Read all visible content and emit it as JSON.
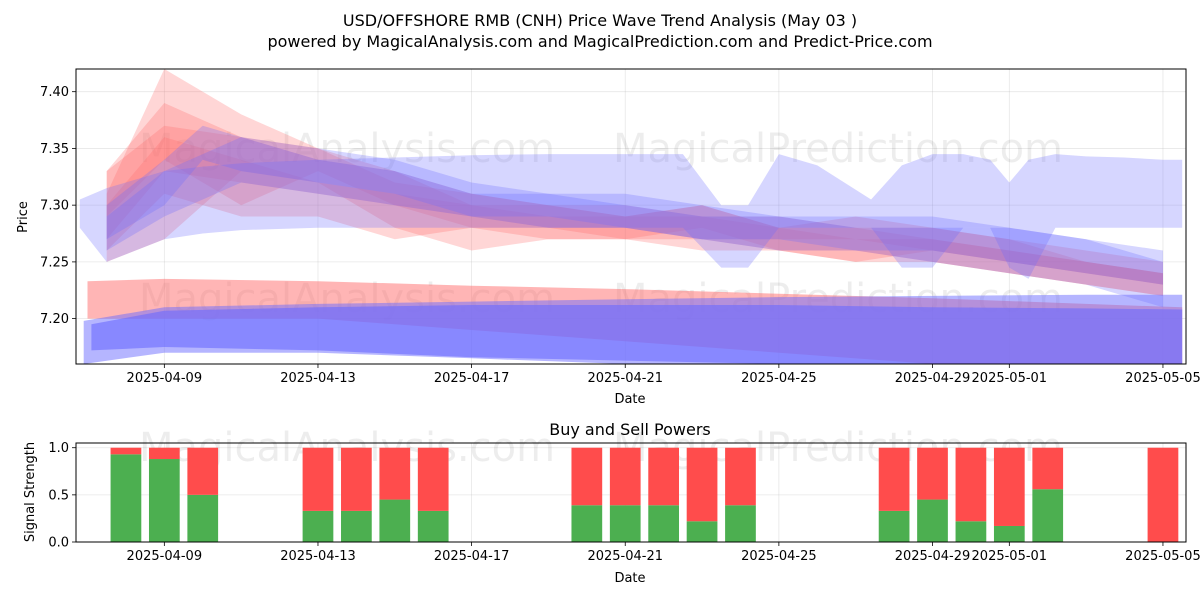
{
  "title_line1": "USD/OFFSHORE RMB (CNH) Price Wave Trend Analysis (May 03 )",
  "title_line2": "powered by MagicalAnalysis.com and MagicalPrediction.com and Predict-Price.com",
  "watermarks": [
    "MagicalAnalysis.com",
    "MagicalPrediction.com"
  ],
  "colors": {
    "red": "#ff6b6b",
    "blue": "#6b6bff",
    "buy": "#4caf50",
    "sell": "#ff4c4c"
  },
  "chart_data": [
    {
      "type": "area",
      "title": "",
      "xlabel": "Date",
      "ylabel": "Price",
      "ylim": [
        7.16,
        7.42
      ],
      "xlim_days": [
        -2.3,
        26.6
      ],
      "x_ticks": [
        "2025-04-09",
        "2025-04-13",
        "2025-04-17",
        "2025-04-21",
        "2025-04-25",
        "2025-04-29",
        "2025-05-01",
        "2025-05-05"
      ],
      "x_tick_days": [
        0,
        4,
        8,
        12,
        16,
        20,
        22,
        26
      ],
      "y_ticks": [
        "7.20",
        "7.25",
        "7.30",
        "7.35",
        "7.40"
      ],
      "y_tick_values": [
        7.2,
        7.25,
        7.3,
        7.35,
        7.4
      ],
      "grid": true,
      "series": [
        {
          "name": "red-wave-1",
          "color": "red",
          "x": [
            -1.5,
            0,
            2,
            4,
            6,
            8,
            10,
            12,
            14,
            16,
            18,
            20,
            22,
            24,
            26
          ],
          "lower": [
            7.27,
            7.33,
            7.32,
            7.31,
            7.3,
            7.28,
            7.28,
            7.27,
            7.27,
            7.26,
            7.26,
            7.25,
            7.24,
            7.23,
            7.22
          ],
          "upper": [
            7.33,
            7.39,
            7.36,
            7.34,
            7.33,
            7.31,
            7.3,
            7.3,
            7.29,
            7.28,
            7.28,
            7.27,
            7.26,
            7.25,
            7.24
          ]
        },
        {
          "name": "red-wave-2",
          "color": "red",
          "x": [
            -1.5,
            0,
            2,
            4,
            6,
            8,
            10,
            12,
            14,
            16,
            18,
            20,
            22,
            24,
            26
          ],
          "lower": [
            7.25,
            7.27,
            7.33,
            7.32,
            7.28,
            7.26,
            7.27,
            7.27,
            7.26,
            7.26,
            7.25,
            7.26,
            7.25,
            7.24,
            7.23
          ],
          "upper": [
            7.31,
            7.42,
            7.38,
            7.35,
            7.33,
            7.3,
            7.3,
            7.29,
            7.3,
            7.28,
            7.29,
            7.28,
            7.27,
            7.26,
            7.25
          ]
        },
        {
          "name": "red-wave-3",
          "color": "red",
          "x": [
            -1.5,
            0,
            2,
            4,
            6,
            8,
            10,
            12,
            14,
            16,
            18,
            20,
            22,
            24,
            26
          ],
          "lower": [
            7.29,
            7.34,
            7.3,
            7.33,
            7.3,
            7.29,
            7.28,
            7.28,
            7.27,
            7.27,
            7.27,
            7.26,
            7.25,
            7.24,
            7.23
          ],
          "upper": [
            7.33,
            7.37,
            7.36,
            7.35,
            7.32,
            7.31,
            7.3,
            7.29,
            7.29,
            7.29,
            7.28,
            7.28,
            7.27,
            7.25,
            7.24
          ]
        },
        {
          "name": "red-wave-4",
          "color": "red",
          "x": [
            -1.5,
            0,
            2,
            4,
            6,
            8,
            10,
            12,
            14,
            16,
            18,
            20,
            22,
            24,
            26
          ],
          "lower": [
            7.26,
            7.31,
            7.29,
            7.29,
            7.27,
            7.28,
            7.27,
            7.27,
            7.28,
            7.26,
            7.25,
            7.25,
            7.24,
            7.23,
            7.22
          ],
          "upper": [
            7.3,
            7.36,
            7.34,
            7.32,
            7.31,
            7.3,
            7.29,
            7.29,
            7.3,
            7.28,
            7.27,
            7.27,
            7.26,
            7.25,
            7.24
          ]
        },
        {
          "name": "red-base-band",
          "color": "red",
          "x": [
            -2,
            0,
            4,
            8,
            12,
            16,
            20,
            24,
            26.5
          ],
          "lower": [
            7.2,
            7.2,
            7.2,
            7.19,
            7.18,
            7.17,
            7.16,
            7.16,
            7.16
          ],
          "upper": [
            7.233,
            7.235,
            7.233,
            7.229,
            7.226,
            7.222,
            7.218,
            7.213,
            7.21
          ]
        },
        {
          "name": "blue-wave-1",
          "color": "blue",
          "x": [
            -2.2,
            -1.5,
            0,
            1,
            2,
            4,
            6,
            8,
            10,
            12,
            13.5,
            14.5,
            15.2,
            16,
            17,
            18.4,
            19.2,
            20,
            20.8,
            21.5,
            22,
            22.5,
            23.2,
            24,
            25,
            26,
            26.5
          ],
          "lower": [
            7.28,
            7.25,
            7.27,
            7.275,
            7.278,
            7.28,
            7.28,
            7.28,
            7.28,
            7.28,
            7.28,
            7.245,
            7.245,
            7.28,
            7.28,
            7.28,
            7.245,
            7.245,
            7.28,
            7.28,
            7.245,
            7.235,
            7.28,
            7.28,
            7.28,
            7.28,
            7.28
          ],
          "upper": [
            7.305,
            7.315,
            7.33,
            7.334,
            7.337,
            7.34,
            7.342,
            7.344,
            7.345,
            7.345,
            7.345,
            7.3,
            7.3,
            7.345,
            7.335,
            7.305,
            7.335,
            7.345,
            7.345,
            7.34,
            7.32,
            7.34,
            7.345,
            7.343,
            7.342,
            7.34,
            7.34
          ]
        },
        {
          "name": "blue-wave-2",
          "color": "blue",
          "x": [
            -1.5,
            0,
            1,
            2,
            4,
            6,
            8,
            10,
            12,
            14,
            16,
            18,
            20,
            22,
            24,
            26
          ],
          "lower": [
            7.27,
            7.3,
            7.34,
            7.33,
            7.32,
            7.31,
            7.29,
            7.29,
            7.28,
            7.27,
            7.26,
            7.26,
            7.25,
            7.24,
            7.23,
            7.21
          ],
          "upper": [
            7.3,
            7.34,
            7.37,
            7.36,
            7.35,
            7.34,
            7.32,
            7.31,
            7.31,
            7.3,
            7.29,
            7.29,
            7.29,
            7.28,
            7.27,
            7.25
          ]
        },
        {
          "name": "blue-wave-3",
          "color": "blue",
          "x": [
            -1.5,
            0,
            2,
            4,
            6,
            8,
            10,
            12,
            14,
            16,
            18,
            20,
            22,
            24,
            26
          ],
          "lower": [
            7.26,
            7.29,
            7.32,
            7.31,
            7.3,
            7.29,
            7.28,
            7.28,
            7.27,
            7.27,
            7.26,
            7.26,
            7.25,
            7.24,
            7.23
          ],
          "upper": [
            7.29,
            7.33,
            7.36,
            7.34,
            7.33,
            7.31,
            7.31,
            7.3,
            7.29,
            7.29,
            7.28,
            7.28,
            7.28,
            7.27,
            7.26
          ]
        },
        {
          "name": "blue-base-band",
          "color": "blue",
          "x": [
            -2.1,
            0,
            4,
            8,
            12,
            16,
            20,
            24,
            26.5
          ],
          "lower": [
            7.16,
            7.17,
            7.17,
            7.165,
            7.16,
            7.16,
            7.16,
            7.16,
            7.16
          ],
          "upper": [
            7.198,
            7.21,
            7.213,
            7.215,
            7.217,
            7.219,
            7.22,
            7.221,
            7.221
          ]
        },
        {
          "name": "purple-base-band",
          "color": "blue",
          "x": [
            -1.9,
            0,
            4,
            8,
            12,
            16,
            20,
            24,
            26.5
          ],
          "lower": [
            7.172,
            7.175,
            7.172,
            7.166,
            7.163,
            7.16,
            7.16,
            7.16,
            7.16
          ],
          "upper": [
            7.195,
            7.207,
            7.21,
            7.212,
            7.212,
            7.212,
            7.21,
            7.209,
            7.208
          ]
        }
      ]
    },
    {
      "type": "bar",
      "title": "Buy and Sell Powers",
      "xlabel": "Date",
      "ylabel": "Signal Strength",
      "ylim": [
        0,
        1.05
      ],
      "xlim_days": [
        -2.3,
        26.6
      ],
      "x_ticks": [
        "2025-04-09",
        "2025-04-13",
        "2025-04-17",
        "2025-04-21",
        "2025-04-25",
        "2025-04-29",
        "2025-05-01",
        "2025-05-05"
      ],
      "x_tick_days": [
        0,
        4,
        8,
        12,
        16,
        20,
        22,
        26
      ],
      "y_ticks": [
        "0.0",
        "0.5",
        "1.0"
      ],
      "y_tick_values": [
        0,
        0.5,
        1.0
      ],
      "grid": true,
      "days": [
        -1,
        0,
        1,
        4,
        5,
        6,
        7,
        11,
        12,
        13,
        14,
        15,
        19,
        20,
        21,
        22,
        23,
        26
      ],
      "buy": [
        0.93,
        0.88,
        0.5,
        0.33,
        0.33,
        0.45,
        0.33,
        0.39,
        0.39,
        0.39,
        0.22,
        0.39,
        0.33,
        0.45,
        0.22,
        0.17,
        0.56,
        0.0
      ],
      "sell": [
        0.07,
        0.12,
        0.5,
        0.67,
        0.67,
        0.55,
        0.67,
        0.61,
        0.61,
        0.61,
        0.78,
        0.61,
        0.67,
        0.55,
        0.78,
        0.83,
        0.44,
        1.0
      ]
    }
  ]
}
